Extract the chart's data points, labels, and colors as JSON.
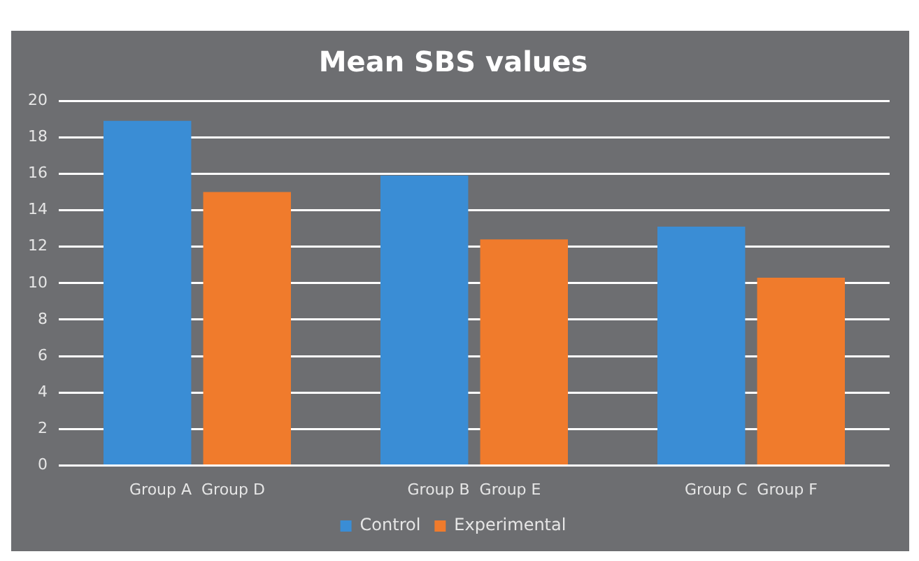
{
  "chart_data": {
    "type": "bar",
    "title": "Mean SBS values",
    "categories": [
      "Group A  Group D",
      "Group B  Group E",
      "Group C  Group F"
    ],
    "series": [
      {
        "name": "Control",
        "color": "#3a8dd5",
        "values": [
          18.9,
          15.9,
          13.1
        ]
      },
      {
        "name": "Experimental",
        "color": "#f07b2c",
        "values": [
          15.0,
          12.4,
          10.3
        ]
      }
    ],
    "ylim": [
      0,
      20
    ],
    "yticks": [
      0,
      2,
      4,
      6,
      8,
      10,
      12,
      14,
      16,
      18,
      20
    ],
    "grid": "y",
    "legend": "bottom"
  }
}
